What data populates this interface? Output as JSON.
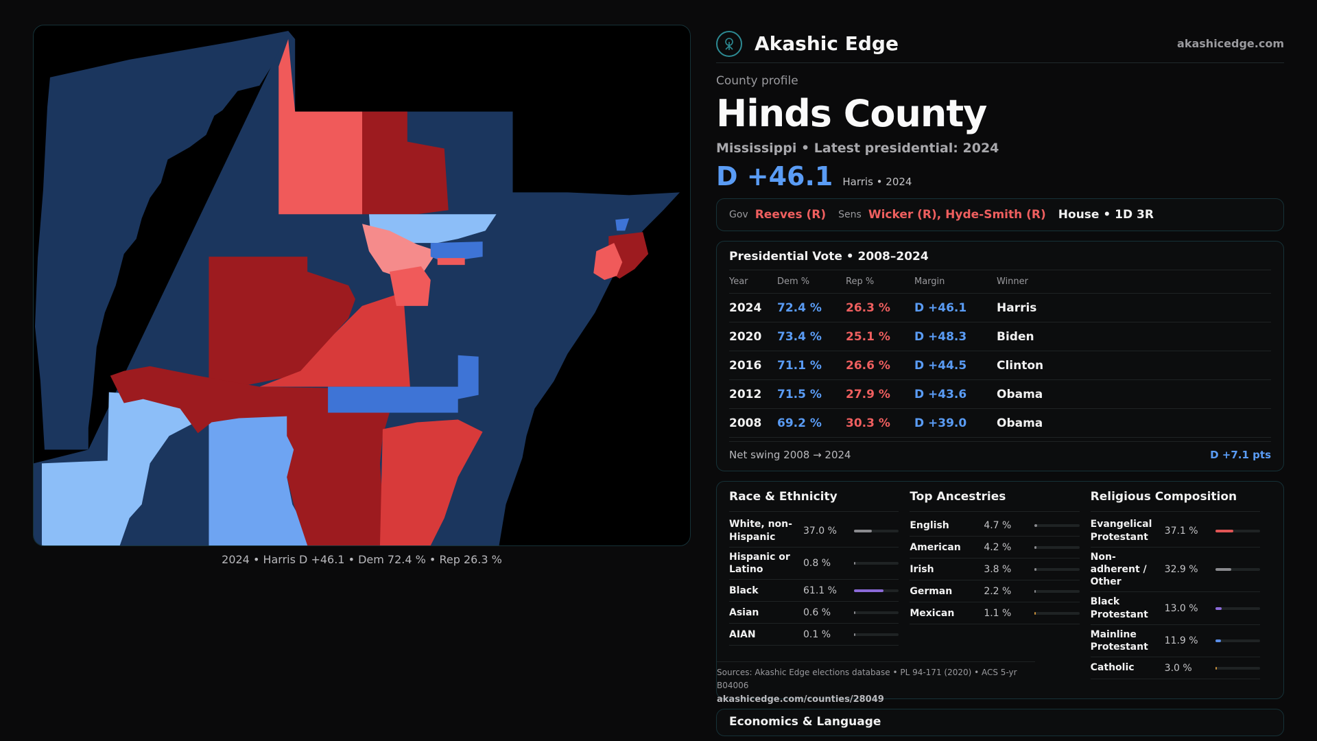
{
  "brand": {
    "name": "Akashic Edge",
    "url": "akashicedge.com",
    "logo_icon": "tree-icon"
  },
  "profile": {
    "label": "County profile",
    "title": "Hinds County",
    "subtitle": "Mississippi • Latest presidential: 2024",
    "margin": "D +46.1",
    "margin_note": "Harris • 2024"
  },
  "map": {
    "caption": "2024 • Harris D +46.1 • Dem 72.4 % • Rep 26.3 %",
    "colors": {
      "dark_blue": "#1b365e",
      "mid_blue": "#3e74d6",
      "light_blue": "#8cbef8",
      "sky_blue": "#6ea4f2",
      "dark_red": "#9d1b1f",
      "red": "#d83a3a",
      "light_red": "#f05a5a",
      "pink": "#f58b8b"
    }
  },
  "officials": {
    "gov_label": "Gov",
    "gov": "Reeves (R)",
    "sens_label": "Sens",
    "sens": "Wicker (R), Hyde-Smith (R)",
    "house": "House • 1D 3R"
  },
  "presidential": {
    "title": "Presidential Vote • 2008–2024",
    "headers": {
      "year": "Year",
      "dem": "Dem %",
      "rep": "Rep %",
      "margin": "Margin",
      "winner": "Winner"
    },
    "rows": [
      {
        "year": "2024",
        "dem": "72.4 %",
        "rep": "26.3 %",
        "margin": "D +46.1",
        "winner": "Harris"
      },
      {
        "year": "2020",
        "dem": "73.4 %",
        "rep": "25.1 %",
        "margin": "D +48.3",
        "winner": "Biden"
      },
      {
        "year": "2016",
        "dem": "71.1 %",
        "rep": "26.6 %",
        "margin": "D +44.5",
        "winner": "Clinton"
      },
      {
        "year": "2012",
        "dem": "71.5 %",
        "rep": "27.9 %",
        "margin": "D +43.6",
        "winner": "Obama"
      },
      {
        "year": "2008",
        "dem": "69.2 %",
        "rep": "30.3 %",
        "margin": "D +39.0",
        "winner": "Obama"
      }
    ],
    "swing_label": "Net swing 2008 → 2024",
    "swing_value": "D +7.1 pts"
  },
  "race": {
    "title": "Race & Ethnicity",
    "rows": [
      {
        "name": "White, non-Hispanic",
        "pct": "37.0 %",
        "value": 0.37,
        "color": "#8a8a8e"
      },
      {
        "name": "Hispanic or Latino",
        "pct": "0.8 %",
        "value": 0.008,
        "color": "#8a8a8e"
      },
      {
        "name": "Black",
        "pct": "61.1 %",
        "value": 0.611,
        "color": "#8b6ad8"
      },
      {
        "name": "Asian",
        "pct": "0.6 %",
        "value": 0.006,
        "color": "#8a8a8e"
      },
      {
        "name": "AIAN",
        "pct": "0.1 %",
        "value": 0.001,
        "color": "#8a8a8e"
      }
    ]
  },
  "ancestry": {
    "title": "Top Ancestries",
    "rows": [
      {
        "name": "English",
        "pct": "4.7 %",
        "value": 0.047,
        "color": "#8a8a8e"
      },
      {
        "name": "American",
        "pct": "4.2 %",
        "value": 0.042,
        "color": "#8a8a8e"
      },
      {
        "name": "Irish",
        "pct": "3.8 %",
        "value": 0.038,
        "color": "#8a8a8e"
      },
      {
        "name": "German",
        "pct": "2.2 %",
        "value": 0.022,
        "color": "#8a8a8e"
      },
      {
        "name": "Mexican",
        "pct": "1.1 %",
        "value": 0.011,
        "color": "#c8903a"
      }
    ]
  },
  "religion": {
    "title": "Religious Composition",
    "rows": [
      {
        "name": "Evangelical Protestant",
        "pct": "37.1 %",
        "value": 0.371,
        "color": "#e05555"
      },
      {
        "name": "Non-adherent / Other",
        "pct": "32.9 %",
        "value": 0.329,
        "color": "#8a8a8e"
      },
      {
        "name": "Black Protestant",
        "pct": "13.0 %",
        "value": 0.13,
        "color": "#8b6ad8"
      },
      {
        "name": "Mainline Protestant",
        "pct": "11.9 %",
        "value": 0.119,
        "color": "#5a8ee8"
      },
      {
        "name": "Catholic",
        "pct": "3.0 %",
        "value": 0.03,
        "color": "#c8903a"
      }
    ]
  },
  "sources": {
    "text": "Sources: Akashic Edge elections database • PL 94-171 (2020) • ACS 5-yr B04006",
    "url": "akashicedge.com/counties/28049"
  },
  "econ": {
    "title": "Economics & Language"
  }
}
